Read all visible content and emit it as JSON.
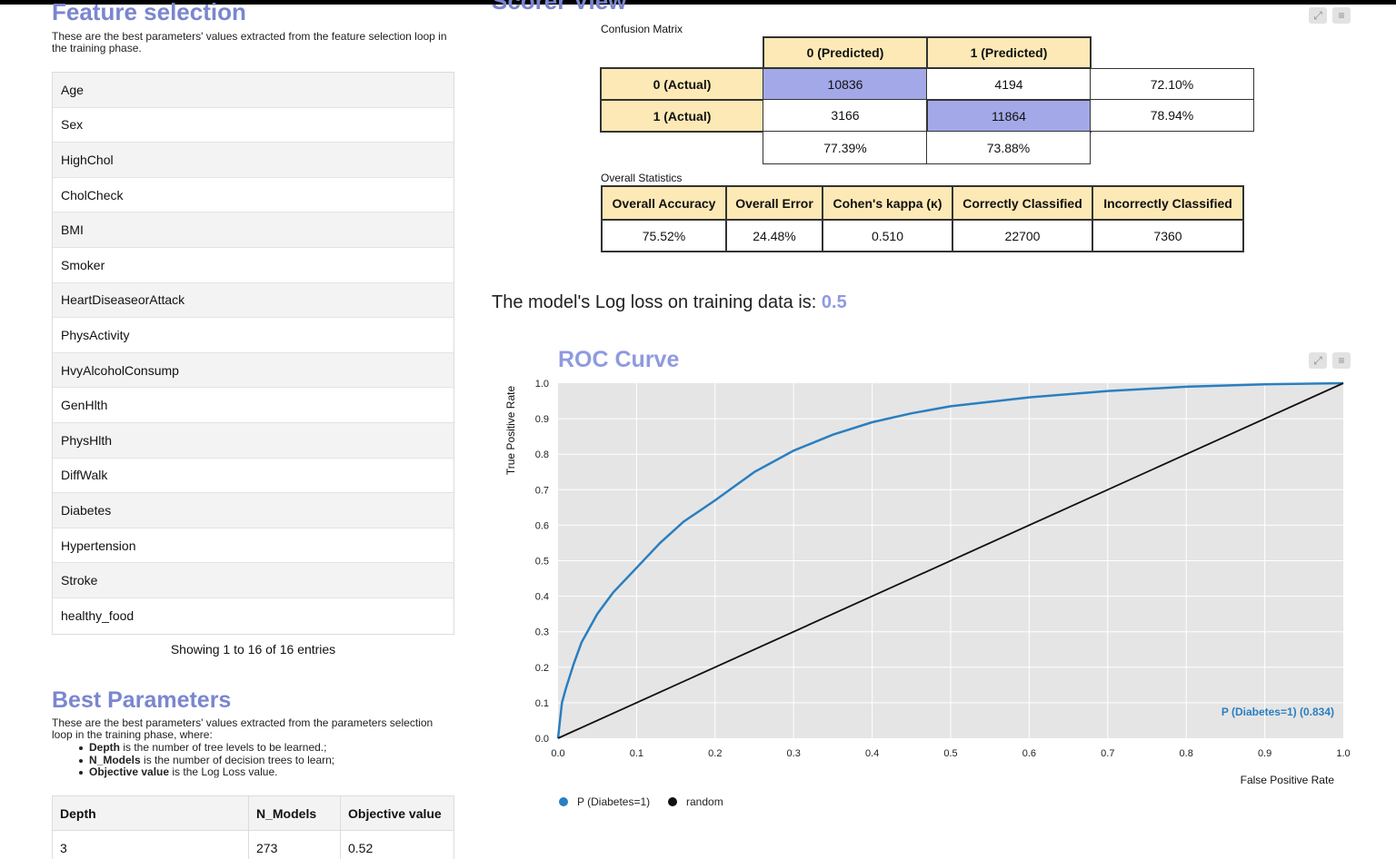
{
  "feature_selection": {
    "title": "Feature selection",
    "description": "These are the best parameters' values extracted from the feature selection loop in the training phase.",
    "features": [
      "Age",
      "Sex",
      "HighChol",
      "CholCheck",
      "BMI",
      "Smoker",
      "HeartDiseaseorAttack",
      "PhysActivity",
      "HvyAlcoholConsump",
      "GenHlth",
      "PhysHlth",
      "DiffWalk",
      "Diabetes",
      "Hypertension",
      "Stroke",
      "healthy_food"
    ],
    "info": "Showing 1 to 16 of 16 entries"
  },
  "best_parameters": {
    "title": "Best Parameters",
    "description": "These are the best parameters' values extracted from the parameters selection loop in the training phase, where:",
    "bullets": [
      {
        "term": "Depth",
        "text": " is the number of tree levels to be learned.;"
      },
      {
        "term": "N_Models",
        "text": " is the number of decision trees to learn;"
      },
      {
        "term": "Objective value",
        "text": " is the Log Loss value."
      }
    ],
    "columns": [
      "Depth",
      "N_Models",
      "Objective value"
    ],
    "rows": [
      [
        "3",
        "273",
        "0.52"
      ]
    ]
  },
  "scorer_view": {
    "title": "Scorer View",
    "confusion_matrix": {
      "label": "Confusion Matrix",
      "col_headers": [
        "0 (Predicted)",
        "1 (Predicted)"
      ],
      "row_headers": [
        "0 (Actual)",
        "1 (Actual)"
      ],
      "values": [
        [
          "10836",
          "4194"
        ],
        [
          "3166",
          "11864"
        ]
      ],
      "row_pct": [
        "72.10%",
        "78.94%"
      ],
      "col_pct": [
        "77.39%",
        "73.88%"
      ]
    },
    "overall_statistics": {
      "label": "Overall Statistics",
      "headers": [
        "Overall Accuracy",
        "Overall Error",
        "Cohen's kappa (κ)",
        "Correctly Classified",
        "Incorrectly Classified"
      ],
      "values": [
        "75.52%",
        "24.48%",
        "0.510",
        "22700",
        "7360"
      ]
    }
  },
  "logloss": {
    "text": "The model's Log loss on training data is: ",
    "value": "0.5"
  },
  "chart_data": {
    "type": "line",
    "title": "ROC Curve",
    "xlabel": "False Positive Rate",
    "ylabel": "True Positive Rate",
    "xlim": [
      0.0,
      1.0
    ],
    "ylim": [
      0.0,
      1.0
    ],
    "x_ticks": [
      "0.0",
      "0.1",
      "0.2",
      "0.3",
      "0.4",
      "0.5",
      "0.6",
      "0.7",
      "0.8",
      "0.9",
      "1.0"
    ],
    "y_ticks": [
      "0.0",
      "0.1",
      "0.2",
      "0.3",
      "0.4",
      "0.5",
      "0.6",
      "0.7",
      "0.8",
      "0.9",
      "1.0"
    ],
    "grid": true,
    "legend_position": "bottom-left",
    "series_label": "P (Diabetes=1) (0.834)",
    "series": [
      {
        "name": "P (Diabetes=1)",
        "color": "#2a7fc0",
        "x": [
          0.0,
          0.005,
          0.01,
          0.02,
          0.03,
          0.05,
          0.07,
          0.1,
          0.13,
          0.16,
          0.2,
          0.25,
          0.3,
          0.35,
          0.4,
          0.45,
          0.5,
          0.6,
          0.7,
          0.8,
          0.9,
          1.0
        ],
        "y": [
          0.0,
          0.1,
          0.14,
          0.21,
          0.27,
          0.35,
          0.41,
          0.48,
          0.55,
          0.61,
          0.67,
          0.75,
          0.81,
          0.855,
          0.89,
          0.915,
          0.935,
          0.96,
          0.978,
          0.99,
          0.997,
          1.0
        ]
      },
      {
        "name": "random",
        "color": "#111111",
        "x": [
          0.0,
          1.0
        ],
        "y": [
          0.0,
          1.0
        ]
      }
    ]
  },
  "colors": {
    "accent": "#7a86cf",
    "header_fill": "#fce9b5",
    "diag_fill": "#a3a8e8",
    "plot_bg": "#e5e5e5"
  },
  "icons": [
    "expand-icon",
    "menu-icon"
  ]
}
